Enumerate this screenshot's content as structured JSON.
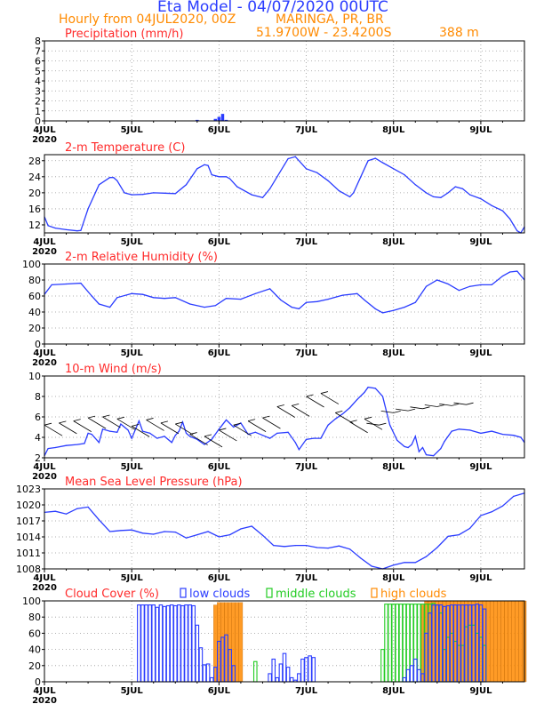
{
  "header": {
    "title": "Eta Model - 04/07/2020 00UTC",
    "subtitle": "Hourly from 04JUL2020, 00Z",
    "location": "MARINGA, PR, BR",
    "coords": "51.9700W - 23.4200S",
    "elevation": "388   m"
  },
  "colors": {
    "title": "#2a3cff",
    "subtitle": "#ff8a00",
    "panel_title": "#ff2a2a",
    "line": "#2a3cff",
    "low_cloud": "#2a3cff",
    "mid_cloud": "#22cc22",
    "high_cloud": "#ff8a00",
    "wind_barb": "#000000",
    "grid": "#999999"
  },
  "chart_data": [
    {
      "type": "bar",
      "title": "Precipitation (mm/h)",
      "x_unit": "hours since 04JUL2020 00Z",
      "xlim": [
        0,
        132
      ],
      "x_ticks": [
        "4JUL",
        "5JUL",
        "6JUL",
        "7JUL",
        "8JUL",
        "9JUL"
      ],
      "x_tick_hours": [
        0,
        24,
        48,
        72,
        96,
        120
      ],
      "x_sublabel": "2020",
      "ylim": [
        0,
        8
      ],
      "y_ticks": [
        0,
        1,
        2,
        3,
        4,
        5,
        6,
        7,
        8
      ],
      "x": [
        42,
        47,
        48,
        49,
        50
      ],
      "values": [
        0.1,
        0.2,
        0.4,
        0.7,
        0.1
      ]
    },
    {
      "type": "line",
      "title": "2-m Temperature (C)",
      "x_unit": "hours since 04JUL2020 00Z",
      "xlim": [
        0,
        132
      ],
      "x_ticks": [
        "4JUL",
        "5JUL",
        "6JUL",
        "7JUL",
        "8JUL",
        "9JUL"
      ],
      "x_tick_hours": [
        0,
        24,
        48,
        72,
        96,
        120
      ],
      "x_sublabel": "2020",
      "ylim": [
        10,
        29.5
      ],
      "y_ticks": [
        12,
        16,
        20,
        24,
        28
      ],
      "x": [
        0,
        1,
        3,
        6,
        9,
        10,
        12,
        14,
        15,
        18,
        19,
        20,
        22,
        24,
        27,
        30,
        33,
        36,
        39,
        42,
        44,
        45,
        46,
        48,
        50,
        51,
        53,
        57,
        60,
        62,
        64,
        66,
        67,
        69,
        72,
        75,
        78,
        81,
        82,
        84,
        85,
        87,
        89,
        91,
        93,
        96,
        99,
        102,
        105,
        107,
        109,
        111,
        113,
        115,
        117,
        120,
        123,
        126,
        128,
        129,
        130,
        131,
        132
      ],
      "values": [
        14,
        11.8,
        11.2,
        10.8,
        10.5,
        10.6,
        16,
        20,
        22,
        23.8,
        23.8,
        23,
        20,
        19.5,
        19.6,
        20,
        19.9,
        19.8,
        22,
        26,
        27,
        26.8,
        24.5,
        24,
        24,
        23.5,
        21.5,
        19.5,
        18.8,
        21,
        24,
        27,
        28.5,
        29,
        26,
        25,
        23,
        20.5,
        20,
        19,
        20,
        24,
        28,
        28.6,
        27.5,
        26,
        24.5,
        22,
        20,
        19,
        18.8,
        20,
        21.5,
        21,
        19.5,
        18.5,
        16.8,
        15.5,
        13.5,
        12,
        10.5,
        10,
        11.5
      ]
    },
    {
      "type": "line",
      "title": "2-m Relative Humidity (%)",
      "x_unit": "hours since 04JUL2020 00Z",
      "xlim": [
        0,
        132
      ],
      "x_ticks": [
        "4JUL",
        "5JUL",
        "6JUL",
        "7JUL",
        "8JUL",
        "9JUL"
      ],
      "x_tick_hours": [
        0,
        24,
        48,
        72,
        96,
        120
      ],
      "x_sublabel": "2020",
      "ylim": [
        0,
        100
      ],
      "y_ticks": [
        0,
        20,
        40,
        60,
        80,
        100
      ],
      "x": [
        0,
        2,
        6,
        10,
        13,
        15,
        18,
        20,
        24,
        27,
        30,
        33,
        36,
        40,
        44,
        47,
        50,
        54,
        58,
        62,
        65,
        68,
        70,
        72,
        75,
        78,
        82,
        86,
        88,
        91,
        93,
        96,
        99,
        102,
        105,
        108,
        111,
        114,
        117,
        120,
        123,
        126,
        128,
        130,
        132
      ],
      "values": [
        62,
        74,
        75,
        76,
        60,
        50,
        46,
        58,
        63,
        62,
        58,
        57,
        58,
        50,
        46,
        48,
        57,
        56,
        63,
        69,
        55,
        46,
        44,
        52,
        53,
        56,
        61,
        63,
        55,
        44,
        39,
        42,
        46,
        52,
        72,
        80,
        75,
        67,
        72,
        74,
        74,
        85,
        90,
        91,
        80
      ]
    },
    {
      "type": "line",
      "title": "10-m Wind (m/s)",
      "x_unit": "hours since 04JUL2020 00Z",
      "xlim": [
        0,
        132
      ],
      "x_ticks": [
        "4JUL",
        "5JUL",
        "6JUL",
        "7JUL",
        "8JUL",
        "9JUL"
      ],
      "x_tick_hours": [
        0,
        24,
        48,
        72,
        96,
        120
      ],
      "x_sublabel": "2020",
      "ylim": [
        2,
        10
      ],
      "y_ticks": [
        2,
        4,
        6,
        8,
        10
      ],
      "x": [
        0,
        1,
        3,
        6,
        9,
        11,
        12,
        13,
        15,
        16,
        18,
        20,
        21,
        23,
        24,
        26,
        27,
        29,
        31,
        33,
        35,
        36,
        37,
        38,
        39,
        40,
        42,
        44,
        46,
        48,
        50,
        52,
        54,
        56,
        58,
        60,
        62,
        64,
        67,
        69,
        70,
        72,
        74,
        76,
        78,
        80,
        82,
        84,
        86,
        88,
        89,
        91,
        93,
        95,
        97,
        99,
        100,
        101,
        102,
        103,
        104,
        105,
        107,
        109,
        110,
        112,
        114,
        117,
        120,
        123,
        126,
        129,
        131,
        132
      ],
      "values": [
        2.2,
        2.9,
        3.0,
        3.2,
        3.3,
        3.4,
        4.4,
        4.3,
        3.5,
        4.8,
        4.6,
        4.5,
        5.3,
        4.7,
        3.9,
        5.6,
        4.6,
        4.4,
        3.9,
        4.1,
        3.5,
        4.2,
        4.6,
        5.5,
        4.4,
        4.1,
        3.8,
        3.3,
        3.8,
        4.8,
        5.7,
        5.0,
        5.4,
        4.3,
        4.5,
        4.2,
        3.9,
        4.4,
        4.5,
        3.5,
        2.8,
        3.8,
        3.9,
        3.9,
        5.2,
        5.8,
        6.3,
        6.9,
        7.7,
        8.4,
        8.9,
        8.8,
        8.0,
        5.2,
        3.7,
        3.1,
        3.0,
        3.3,
        4.1,
        2.6,
        3.0,
        2.3,
        2.2,
        2.9,
        3.6,
        4.6,
        4.8,
        4.7,
        4.4,
        4.6,
        4.3,
        4.2,
        4.0,
        3.5
      ]
    },
    {
      "type": "line",
      "title": "Mean Sea Level Pressure (hPa)",
      "x_unit": "hours since 04JUL2020 00Z",
      "xlim": [
        0,
        132
      ],
      "x_ticks": [
        "4JUL",
        "5JUL",
        "6JUL",
        "7JUL",
        "8JUL",
        "9JUL"
      ],
      "x_tick_hours": [
        0,
        24,
        48,
        72,
        96,
        120
      ],
      "x_sublabel": "2020",
      "ylim": [
        1008,
        1023
      ],
      "y_ticks": [
        1008,
        1011,
        1014,
        1017,
        1020,
        1023
      ],
      "x": [
        0,
        3,
        6,
        9,
        12,
        15,
        18,
        21,
        24,
        27,
        30,
        33,
        36,
        39,
        42,
        45,
        48,
        51,
        54,
        57,
        60,
        63,
        66,
        69,
        72,
        75,
        78,
        81,
        84,
        87,
        90,
        93,
        96,
        99,
        102,
        105,
        108,
        111,
        114,
        117,
        120,
        123,
        126,
        129,
        132
      ],
      "values": [
        1018.6,
        1018.8,
        1018.3,
        1019.3,
        1019.6,
        1017.2,
        1015.0,
        1015.2,
        1015.3,
        1014.7,
        1014.5,
        1015.0,
        1014.9,
        1013.8,
        1014.4,
        1015.0,
        1014.0,
        1014.4,
        1015.5,
        1016.0,
        1014.3,
        1012.4,
        1012.2,
        1012.4,
        1012.4,
        1012.0,
        1011.9,
        1012.3,
        1011.7,
        1010.0,
        1008.5,
        1008.0,
        1008.7,
        1009.2,
        1009.2,
        1010.3,
        1012.0,
        1014.1,
        1014.4,
        1015.6,
        1018.0,
        1018.7,
        1019.8,
        1021.6,
        1022.2
      ]
    },
    {
      "type": "bar",
      "title": "Cloud Cover (%)",
      "x_unit": "hours since 04JUL2020 00Z",
      "xlim": [
        0,
        132
      ],
      "x_ticks": [
        "4JUL",
        "5JUL",
        "6JUL",
        "7JUL",
        "8JUL",
        "9JUL"
      ],
      "x_tick_hours": [
        0,
        24,
        48,
        72,
        96,
        120
      ],
      "x_sublabel": "2020",
      "ylim": [
        0,
        100
      ],
      "y_ticks": [
        0,
        20,
        40,
        60,
        80,
        100
      ],
      "legend": [
        "low clouds",
        "middle clouds",
        "high clouds"
      ],
      "series": [
        {
          "name": "low clouds",
          "x": [
            26,
            27,
            28,
            29,
            30,
            31,
            32,
            33,
            34,
            35,
            36,
            37,
            38,
            39,
            40,
            41,
            42,
            43,
            44,
            45,
            46,
            47,
            48,
            49,
            50,
            51,
            52,
            62,
            63,
            64,
            65,
            66,
            67,
            68,
            69,
            70,
            71,
            72,
            73,
            74,
            99,
            100,
            101,
            102,
            103,
            104,
            105,
            106,
            107,
            108,
            109,
            110,
            111,
            112,
            113,
            114,
            115,
            116,
            117,
            118,
            119,
            120,
            121
          ],
          "values": [
            95,
            95,
            95,
            95,
            95,
            92,
            95,
            93,
            94,
            95,
            94,
            95,
            94,
            95,
            95,
            94,
            70,
            42,
            21,
            22,
            5,
            18,
            50,
            55,
            58,
            40,
            20,
            10,
            28,
            5,
            22,
            35,
            18,
            5,
            2,
            10,
            28,
            30,
            32,
            30,
            5,
            15,
            20,
            28,
            15,
            10,
            60,
            85,
            95,
            95,
            95,
            93,
            94,
            95,
            95,
            95,
            95,
            95,
            95,
            95,
            96,
            95,
            90
          ]
        },
        {
          "name": "middle clouds",
          "x": [
            58,
            93,
            94,
            95,
            96,
            97,
            98,
            99,
            100,
            101,
            102,
            103,
            104,
            105,
            106,
            107,
            108,
            109,
            110,
            111,
            112,
            113,
            114,
            115,
            116,
            117,
            118,
            119,
            120,
            121
          ],
          "values": [
            25,
            40,
            96,
            96,
            96,
            96,
            96,
            96,
            96,
            96,
            96,
            96,
            96,
            96,
            96,
            97,
            95,
            85,
            40,
            55,
            60,
            50,
            45,
            45,
            68,
            70,
            70,
            60,
            55,
            45
          ]
        },
        {
          "name": "high clouds",
          "x": [
            47,
            48,
            49,
            50,
            51,
            52,
            53,
            54,
            104,
            105,
            106,
            107,
            108,
            109,
            110,
            111,
            112,
            113,
            114,
            115,
            116,
            117,
            118,
            119,
            120,
            121,
            122,
            123,
            124,
            125,
            126,
            127,
            128,
            129,
            130,
            131,
            132
          ],
          "values": [
            95,
            98,
            98,
            98,
            98,
            98,
            98,
            98,
            95,
            100,
            100,
            100,
            100,
            100,
            100,
            100,
            100,
            100,
            100,
            100,
            100,
            100,
            100,
            100,
            100,
            100,
            100,
            100,
            100,
            100,
            100,
            100,
            100,
            100,
            100,
            100,
            100
          ]
        }
      ]
    }
  ],
  "wind_barbs": {
    "description": "wind direction/speed barbs along the 10-m wind panel",
    "speed_ms": [
      5.2,
      5.4,
      5.6,
      5.9,
      6.0,
      5.8,
      5.1,
      5.7,
      5.4,
      5.3,
      4.3,
      4.1,
      4.7,
      5.2,
      5.6,
      5.9,
      7.0,
      7.1,
      8.0,
      8.3,
      6.4,
      5.5,
      5.8,
      5.2,
      6.4,
      6.6,
      6.8,
      7.0,
      7.1,
      7.2
    ],
    "x_hours": [
      0,
      4,
      8,
      12,
      16,
      20,
      24,
      28,
      32,
      36,
      40,
      44,
      48,
      52,
      56,
      60,
      64,
      68,
      72,
      76,
      80,
      84,
      88,
      92,
      96,
      100,
      104,
      108,
      112,
      116
    ]
  }
}
